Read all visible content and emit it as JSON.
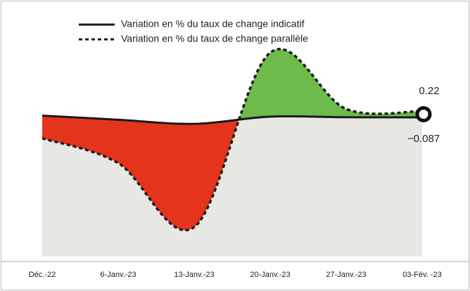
{
  "chart_data": {
    "type": "line",
    "categories": [
      "Déc.-22",
      "6-Janv.-23",
      "13-Janv.-23",
      "20-Janv.-23",
      "27-Janv.-23",
      "03-Fév. -23"
    ],
    "series": [
      {
        "name": "Variation en % du taux de change indicatif",
        "color": "#1a1a1a",
        "style": "solid",
        "values": [
          0.0,
          -0.2,
          -0.4,
          -0.05,
          -0.08,
          -0.087
        ]
      },
      {
        "name": "Variation en % du taux de change parallèle",
        "color": "#1a1a1a",
        "style": "dotted",
        "values": [
          -1.1,
          -2.3,
          -5.4,
          3.05,
          0.32,
          0.22
        ]
      }
    ],
    "annotations": [
      "0.22",
      "−0.087"
    ],
    "ylim": [
      -7,
      4
    ],
    "positive_fill": "#6cbb4b",
    "negative_fill": "#e5341c",
    "area_color": "#e7e7e3"
  }
}
